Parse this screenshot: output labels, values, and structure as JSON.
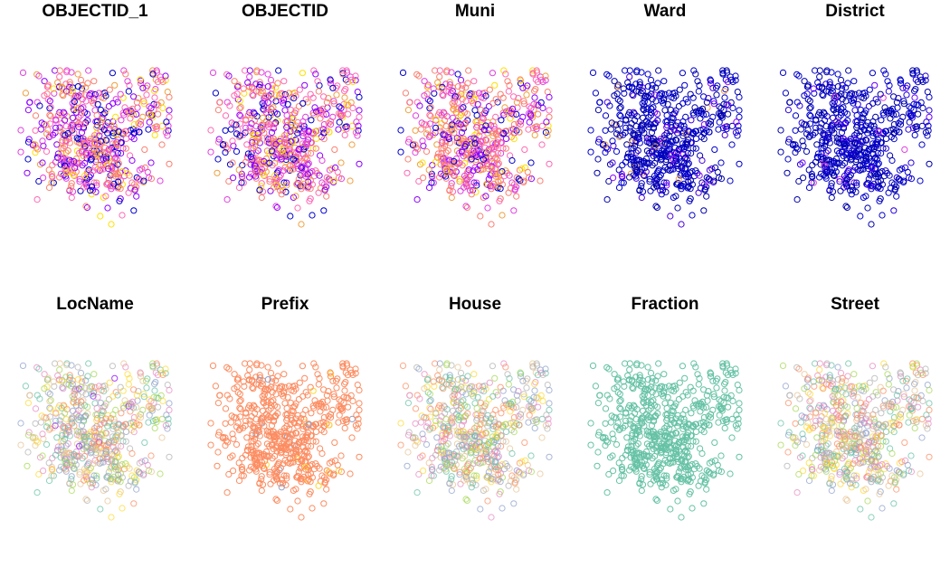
{
  "chart_data": [
    {
      "type": "scatter",
      "title": "OBJECTID_1",
      "palette": [
        "#0000CC",
        "#8B00FF",
        "#E040E0",
        "#FF69B4",
        "#FA8072",
        "#F0A040",
        "#FFE000"
      ],
      "weights": [
        0.14,
        0.2,
        0.16,
        0.16,
        0.15,
        0.11,
        0.08
      ],
      "stroke_opacity": 1.0
    },
    {
      "type": "scatter",
      "title": "OBJECTID",
      "palette": [
        "#0000CC",
        "#8B00FF",
        "#E040E0",
        "#FF69B4",
        "#FA8072",
        "#F0A040",
        "#FFE000"
      ],
      "weights": [
        0.14,
        0.2,
        0.16,
        0.16,
        0.15,
        0.11,
        0.08
      ],
      "stroke_opacity": 1.0
    },
    {
      "type": "scatter",
      "title": "Muni",
      "palette": [
        "#0000CC",
        "#8B00FF",
        "#E040E0",
        "#FF69B4",
        "#FA8072",
        "#F0A040",
        "#FFE000"
      ],
      "weights": [
        0.08,
        0.12,
        0.16,
        0.14,
        0.34,
        0.08,
        0.08
      ],
      "stroke_opacity": 1.0
    },
    {
      "type": "scatter",
      "title": "Ward",
      "palette": [
        "#0000AA",
        "#0000CC",
        "#4400DD",
        "#8B00FF",
        "#F0A040"
      ],
      "weights": [
        0.45,
        0.4,
        0.07,
        0.05,
        0.03
      ],
      "stroke_opacity": 1.0
    },
    {
      "type": "scatter",
      "title": "District",
      "palette": [
        "#0000AA",
        "#0000CC",
        "#2200DD",
        "#6A00FF",
        "#E040E0"
      ],
      "weights": [
        0.42,
        0.4,
        0.12,
        0.04,
        0.02
      ],
      "stroke_opacity": 1.0
    },
    {
      "type": "scatter",
      "title": "LocName",
      "palette": [
        "#66C2A5",
        "#FC8D62",
        "#8DA0CB",
        "#E78AC3",
        "#A6D854",
        "#FFD92F",
        "#E5C494",
        "#B3B3B3",
        "#8B00FF"
      ],
      "weights": [
        0.13,
        0.13,
        0.13,
        0.13,
        0.12,
        0.12,
        0.12,
        0.1,
        0.02
      ],
      "stroke_opacity": 0.75
    },
    {
      "type": "scatter",
      "title": "Prefix",
      "palette": [
        "#FC8D62",
        "#8DA0CB",
        "#FFD92F"
      ],
      "weights": [
        0.96,
        0.02,
        0.02
      ],
      "stroke_opacity": 1.0
    },
    {
      "type": "scatter",
      "title": "House",
      "palette": [
        "#66C2A5",
        "#FC8D62",
        "#8DA0CB",
        "#E78AC3",
        "#A6D854",
        "#FFD92F",
        "#E5C494",
        "#B3B3B3"
      ],
      "weights": [
        0.13,
        0.13,
        0.13,
        0.13,
        0.12,
        0.12,
        0.12,
        0.12
      ],
      "stroke_opacity": 0.75
    },
    {
      "type": "scatter",
      "title": "Fraction",
      "palette": [
        "#66C2A5"
      ],
      "weights": [
        1.0
      ],
      "stroke_opacity": 1.0
    },
    {
      "type": "scatter",
      "title": "Street",
      "palette": [
        "#66C2A5",
        "#FC8D62",
        "#8DA0CB",
        "#E78AC3",
        "#A6D854",
        "#FFD92F",
        "#E5C494",
        "#B3B3B3"
      ],
      "weights": [
        0.13,
        0.13,
        0.13,
        0.13,
        0.12,
        0.12,
        0.12,
        0.12
      ],
      "stroke_opacity": 0.75
    }
  ]
}
